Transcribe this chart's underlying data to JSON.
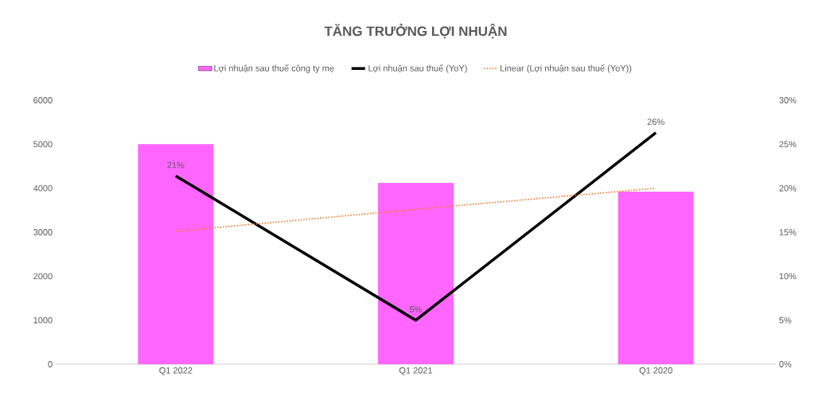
{
  "chart_data": {
    "type": "bar",
    "title": "TĂNG TRƯỞNG LỢI NHUẬN",
    "categories": [
      "Q1 2022",
      "Q1 2021",
      "Q1 2020"
    ],
    "series": [
      {
        "name": "Lợi nhuận sau thuế công ty mẹ",
        "color": "#ff66ff",
        "values": [
          5000,
          4120,
          3920
        ]
      },
      {
        "name": "Lợi nhuận sau thuế (YoY)",
        "type": "line",
        "axis": "y2",
        "color": "#000000",
        "values": [
          21.4,
          5.0,
          26.3
        ],
        "value_labels": [
          "21%",
          "5%",
          "26%"
        ]
      },
      {
        "name": "Linear (Lợi nhuận sau thuế (YoY))",
        "type": "line",
        "axis": "y2",
        "color": "#ed7d31",
        "line_style": "dotted",
        "values": [
          15.1,
          17.6,
          20.0
        ]
      }
    ],
    "ylim": [
      0,
      6000
    ],
    "yticks": [
      0,
      1000,
      2000,
      3000,
      4000,
      5000,
      6000
    ],
    "y2lim": [
      0,
      30
    ],
    "y2ticks": [
      {
        "value": 0,
        "label": "0%"
      },
      {
        "value": 5,
        "label": "5%"
      },
      {
        "value": 10,
        "label": "10%"
      },
      {
        "value": 15,
        "label": "15%"
      },
      {
        "value": 20,
        "label": "20%"
      },
      {
        "value": 25,
        "label": "25%"
      },
      {
        "value": 30,
        "label": "30%"
      }
    ],
    "legend": "top"
  }
}
